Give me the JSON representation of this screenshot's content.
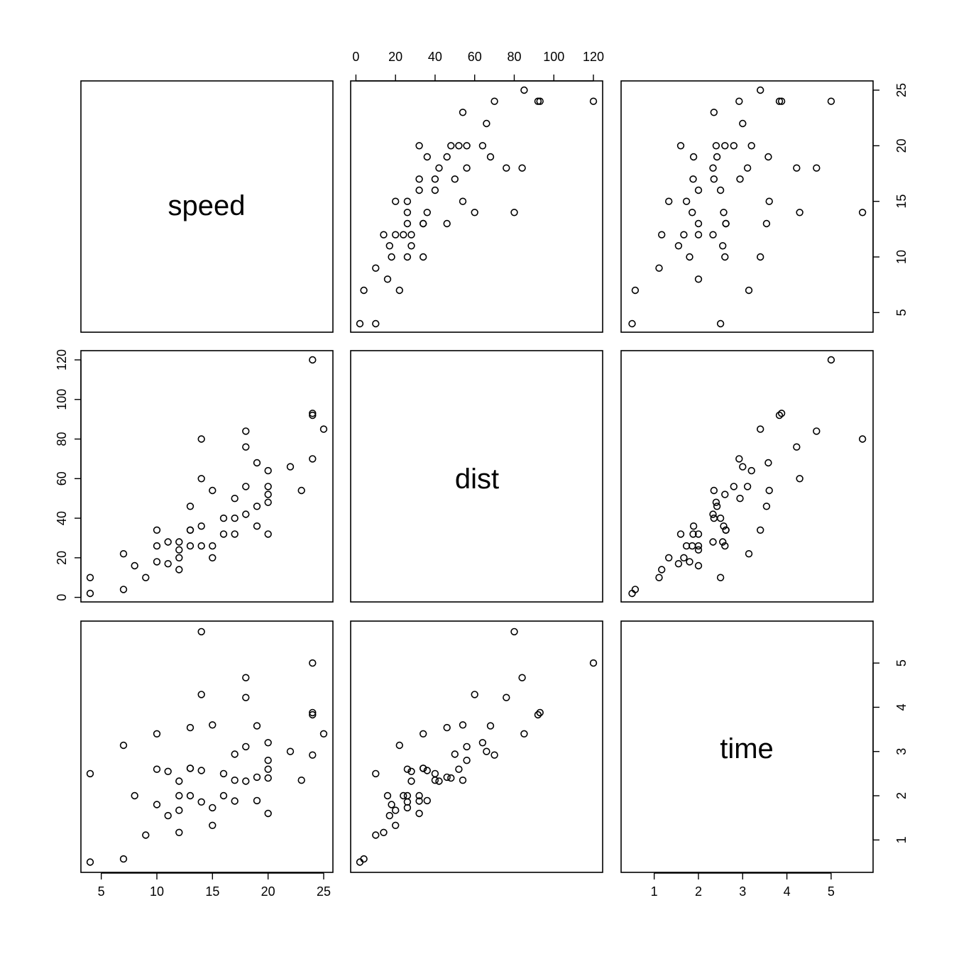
{
  "chart_data": {
    "type": "scatter",
    "plot_kind": "scatterplot-matrix",
    "variables": [
      "speed",
      "dist",
      "time"
    ],
    "ranges": {
      "speed": [
        4,
        25
      ],
      "dist": [
        2,
        120
      ],
      "time": [
        0.46,
        5.74
      ]
    },
    "ticks": {
      "speed": [
        5,
        10,
        15,
        20,
        25
      ],
      "dist": [
        0,
        20,
        40,
        60,
        80,
        100,
        120
      ],
      "time": [
        1,
        2,
        3,
        4,
        5
      ]
    },
    "observations": {
      "speed": [
        4,
        4,
        7,
        7,
        8,
        9,
        10,
        10,
        10,
        11,
        11,
        12,
        12,
        12,
        12,
        13,
        13,
        13,
        13,
        14,
        14,
        14,
        14,
        15,
        15,
        15,
        16,
        16,
        17,
        17,
        17,
        18,
        18,
        18,
        18,
        19,
        19,
        19,
        20,
        20,
        20,
        20,
        20,
        22,
        23,
        24,
        24,
        24,
        24,
        25
      ],
      "dist": [
        2,
        10,
        4,
        22,
        16,
        10,
        18,
        26,
        34,
        17,
        28,
        14,
        20,
        24,
        28,
        26,
        34,
        34,
        46,
        26,
        36,
        60,
        80,
        20,
        26,
        54,
        32,
        40,
        32,
        40,
        50,
        42,
        56,
        76,
        84,
        36,
        46,
        68,
        32,
        48,
        52,
        56,
        64,
        66,
        54,
        70,
        92,
        93,
        120,
        85
      ],
      "time": [
        0.5,
        2.5,
        0.57,
        3.14,
        2.0,
        1.11,
        1.8,
        2.6,
        3.4,
        1.55,
        2.55,
        1.17,
        1.67,
        2.0,
        2.33,
        2.0,
        2.62,
        2.62,
        3.54,
        1.86,
        2.57,
        4.29,
        5.71,
        1.33,
        1.73,
        3.6,
        2.0,
        2.5,
        1.88,
        2.35,
        2.94,
        2.33,
        3.11,
        4.22,
        4.67,
        1.89,
        2.42,
        3.58,
        1.6,
        2.4,
        2.6,
        2.8,
        3.2,
        3.0,
        2.35,
        2.92,
        3.83,
        3.88,
        5.0,
        3.4
      ]
    }
  }
}
